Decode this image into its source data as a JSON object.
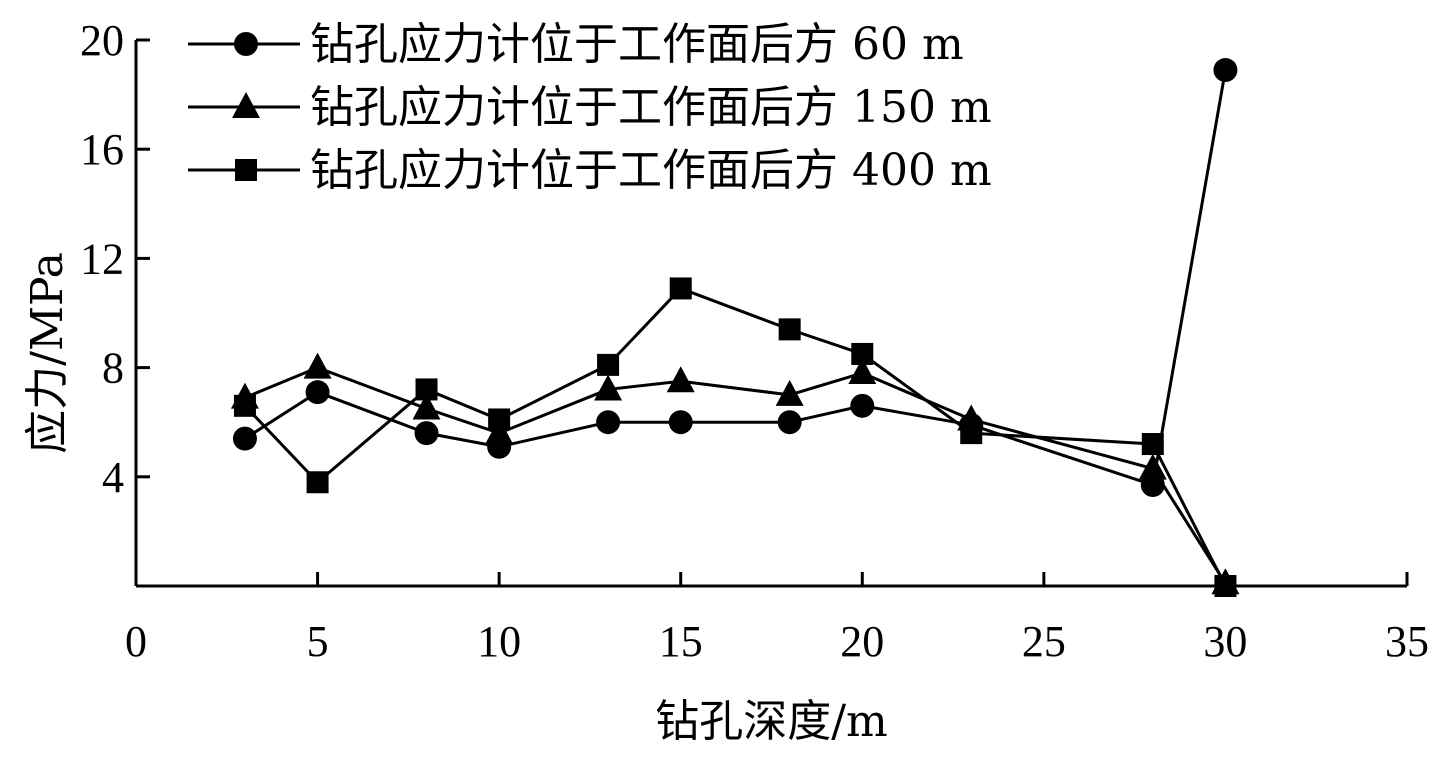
{
  "chart_data": {
    "type": "line",
    "title": "",
    "xlabel": "钻孔深度/m",
    "ylabel": "应力/MPa",
    "xlim": [
      0,
      35
    ],
    "ylim": [
      0,
      20
    ],
    "x_ticks": [
      0,
      5,
      10,
      15,
      20,
      25,
      30,
      35
    ],
    "y_ticks": [
      4,
      8,
      12,
      16,
      20
    ],
    "grid": false,
    "legend_position": "top",
    "series": [
      {
        "name": "钻孔应力计位于工作面后方 60 m",
        "marker": "circle",
        "x": [
          3,
          5,
          8,
          10,
          13,
          15,
          18,
          20,
          23,
          28,
          30
        ],
        "y": [
          5.4,
          7.1,
          5.6,
          5.1,
          6.0,
          6.0,
          6.0,
          6.6,
          5.9,
          3.7,
          18.9
        ]
      },
      {
        "name": "钻孔应力计位于工作面后方 150 m",
        "marker": "triangle",
        "x": [
          3,
          5,
          8,
          10,
          13,
          15,
          18,
          20,
          23,
          28,
          30
        ],
        "y": [
          6.9,
          8.0,
          6.5,
          5.6,
          7.2,
          7.5,
          7.0,
          7.8,
          6.1,
          4.3,
          0.1
        ]
      },
      {
        "name": "钻孔应力计位于工作面后方 400 m",
        "marker": "square",
        "x": [
          3,
          5,
          8,
          10,
          13,
          15,
          18,
          20,
          23,
          28,
          30
        ],
        "y": [
          6.6,
          3.8,
          7.2,
          6.1,
          8.1,
          10.9,
          9.4,
          8.5,
          5.6,
          5.2,
          0.0
        ]
      }
    ]
  }
}
